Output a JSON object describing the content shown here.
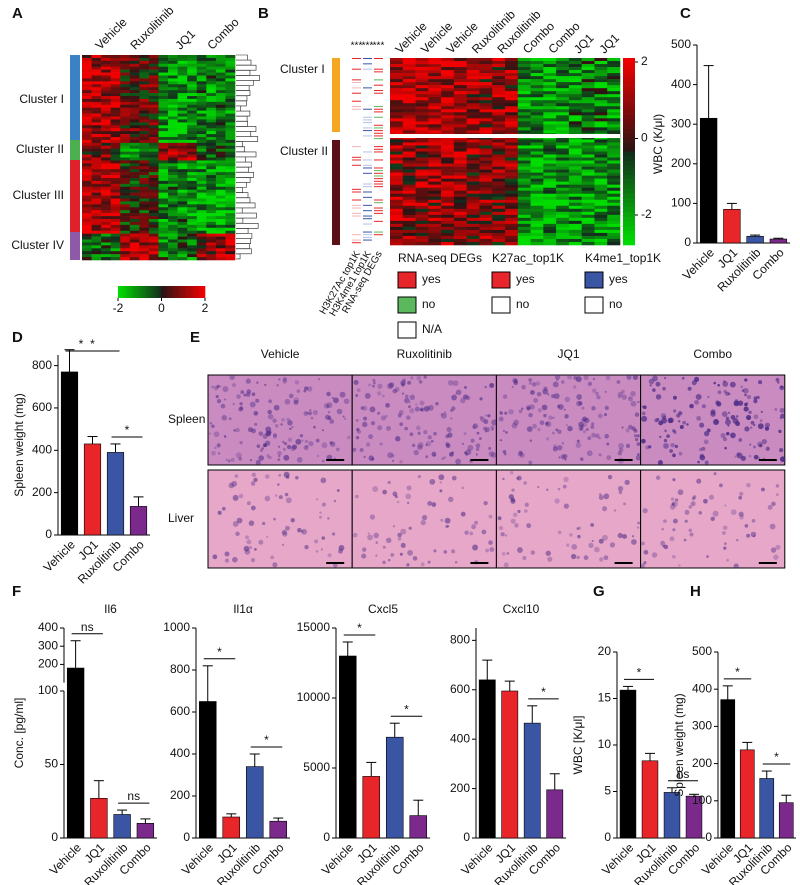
{
  "panels": [
    "A",
    "B",
    "C",
    "D",
    "E",
    "F",
    "G",
    "H"
  ],
  "heatmap_a": {
    "columns": [
      "Vehicle",
      "Ruxolitinib",
      "JQ1",
      "Combo"
    ],
    "clusters": [
      "Cluster I",
      "Cluster II",
      "Cluster III",
      "Cluster IV"
    ],
    "colorbar_ticks": [
      -2,
      0,
      2
    ]
  },
  "heatmap_b": {
    "columns": [
      "Vehicle",
      "Vehicle",
      "Vehicle",
      "Ruxolitinib",
      "Ruxolitinib",
      "Combo",
      "Combo",
      "JQ1",
      "JQ1"
    ],
    "tracks": [
      "H3K27Ac top1K",
      "H3K4me1 top1K",
      "RNA-seq DEGs"
    ],
    "track_stars": [
      "***",
      "***",
      "***"
    ],
    "clusters": [
      "Cluster I",
      "Cluster II"
    ],
    "colorbar_ticks": [
      2,
      0,
      -2
    ],
    "legends": [
      {
        "title": "RNA-seq DEGs",
        "items": [
          "yes",
          "no",
          "N/A"
        ],
        "colors": [
          "#e8262a",
          "#5cb85c",
          "#ffffff"
        ]
      },
      {
        "title": "K27ac_top1K",
        "items": [
          "yes",
          "no"
        ],
        "colors": [
          "#e8262a",
          "#ffffff"
        ]
      },
      {
        "title": "K4me1_top1K",
        "items": [
          "yes",
          "no"
        ],
        "colors": [
          "#3a55a4",
          "#ffffff"
        ]
      }
    ]
  },
  "histology": {
    "columns": [
      "Vehicle",
      "Ruxolitinib",
      "JQ1",
      "Combo"
    ],
    "rows": [
      "Spleen",
      "Liver"
    ]
  },
  "chart_data": [
    {
      "type": "bar",
      "ylabel": "WBC (K/μl)",
      "categories": [
        "Vehicle",
        "JQ1",
        "Ruxolitinib",
        "Combo"
      ],
      "values": [
        315,
        85,
        17,
        10
      ],
      "errors": [
        133,
        15,
        3,
        2
      ],
      "colors": [
        "#000000",
        "#e8262a",
        "#3a55a4",
        "#7b2a8c"
      ],
      "ylim": [
        0,
        500
      ],
      "yticks": [
        0,
        100,
        200,
        300,
        400,
        500
      ],
      "significance": []
    },
    {
      "type": "bar",
      "ylabel": "Spleen weight (mg)",
      "categories": [
        "Vehicle",
        "JQ1",
        "Ruxolitinib",
        "Combo"
      ],
      "values": [
        770,
        430,
        390,
        135
      ],
      "errors": [
        105,
        35,
        40,
        45
      ],
      "colors": [
        "#000000",
        "#e8262a",
        "#3a55a4",
        "#7b2a8c"
      ],
      "ylim": [
        0,
        850
      ],
      "yticks": [
        0,
        200,
        400,
        600,
        800
      ],
      "significance": [
        {
          "between": [
            "Vehicle",
            "Ruxolitinib"
          ],
          "label": "*"
        },
        {
          "between": [
            "Vehicle",
            "JQ1"
          ],
          "label": "*"
        },
        {
          "between": [
            "Ruxolitinib",
            "Combo"
          ],
          "label": "*"
        }
      ]
    },
    {
      "type": "bar",
      "title": "Il6",
      "ylabel": "Conc. [pg/ml]",
      "categories": [
        "Vehicle",
        "JQ1",
        "Ruxolitinib",
        "Combo"
      ],
      "values": [
        180,
        27,
        16,
        10
      ],
      "errors": [
        150,
        12,
        3,
        3
      ],
      "colors": [
        "#000000",
        "#e8262a",
        "#3a55a4",
        "#7b2a8c"
      ],
      "ylim": [
        0,
        400
      ],
      "ybreak": 100,
      "yticks": [
        0,
        50,
        100,
        200,
        300,
        400
      ],
      "significance": [
        {
          "between": [
            "Vehicle",
            "JQ1"
          ],
          "label": "ns"
        },
        {
          "between": [
            "Ruxolitinib",
            "Combo"
          ],
          "label": "ns"
        }
      ]
    },
    {
      "type": "bar",
      "title": "Il1α",
      "categories": [
        "Vehicle",
        "JQ1",
        "Ruxolitinib",
        "Combo"
      ],
      "values": [
        650,
        100,
        340,
        80
      ],
      "errors": [
        170,
        15,
        60,
        15
      ],
      "colors": [
        "#000000",
        "#e8262a",
        "#3a55a4",
        "#7b2a8c"
      ],
      "ylim": [
        0,
        1000
      ],
      "yticks": [
        0,
        200,
        400,
        600,
        800,
        1000
      ],
      "significance": [
        {
          "between": [
            "Vehicle",
            "JQ1"
          ],
          "label": "*"
        },
        {
          "between": [
            "Ruxolitinib",
            "Combo"
          ],
          "label": "*"
        }
      ]
    },
    {
      "type": "bar",
      "title": "Cxcl5",
      "categories": [
        "Vehicle",
        "JQ1",
        "Ruxolitinib",
        "Combo"
      ],
      "values": [
        13000,
        4400,
        7200,
        1600
      ],
      "errors": [
        1000,
        1000,
        1000,
        1100
      ],
      "colors": [
        "#000000",
        "#e8262a",
        "#3a55a4",
        "#7b2a8c"
      ],
      "ylim": [
        0,
        15000
      ],
      "yticks": [
        0,
        5000,
        10000,
        15000
      ],
      "significance": [
        {
          "between": [
            "Vehicle",
            "JQ1"
          ],
          "label": "*"
        },
        {
          "between": [
            "Ruxolitinib",
            "Combo"
          ],
          "label": "*"
        }
      ]
    },
    {
      "type": "bar",
      "title": "Cxcl10",
      "categories": [
        "Vehicle",
        "JQ1",
        "Ruxolitinib",
        "Combo"
      ],
      "values": [
        640,
        595,
        465,
        195
      ],
      "errors": [
        80,
        40,
        70,
        65
      ],
      "colors": [
        "#000000",
        "#e8262a",
        "#3a55a4",
        "#7b2a8c"
      ],
      "ylim": [
        0,
        850
      ],
      "yticks": [
        0,
        200,
        400,
        600,
        800
      ],
      "significance": [
        {
          "between": [
            "Ruxolitinib",
            "Combo"
          ],
          "label": "*"
        }
      ]
    },
    {
      "type": "bar",
      "ylabel": "WBC [K/μl]",
      "categories": [
        "Vehicle",
        "JQ1",
        "Ruxolitinib",
        "Combo"
      ],
      "values": [
        15.9,
        8.3,
        4.9,
        4.5
      ],
      "errors": [
        0.4,
        0.8,
        0.5,
        0.2
      ],
      "colors": [
        "#000000",
        "#e8262a",
        "#3a55a4",
        "#7b2a8c"
      ],
      "ylim": [
        0,
        20
      ],
      "yticks": [
        0,
        5,
        10,
        15,
        20
      ],
      "significance": [
        {
          "between": [
            "Vehicle",
            "JQ1"
          ],
          "label": "*"
        },
        {
          "between": [
            "Ruxolitinib",
            "Combo"
          ],
          "label": "ns"
        }
      ]
    },
    {
      "type": "bar",
      "ylabel": "Spleen weight (mg)",
      "categories": [
        "Vehicle",
        "JQ1",
        "Ruxolitinib",
        "Combo"
      ],
      "values": [
        372,
        237,
        160,
        95
      ],
      "errors": [
        37,
        20,
        20,
        20
      ],
      "colors": [
        "#000000",
        "#e8262a",
        "#3a55a4",
        "#7b2a8c"
      ],
      "ylim": [
        0,
        500
      ],
      "yticks": [
        0,
        100,
        200,
        300,
        400,
        500
      ],
      "significance": [
        {
          "between": [
            "Vehicle",
            "JQ1"
          ],
          "label": "*"
        },
        {
          "between": [
            "Ruxolitinib",
            "Combo"
          ],
          "label": "*"
        }
      ]
    }
  ]
}
